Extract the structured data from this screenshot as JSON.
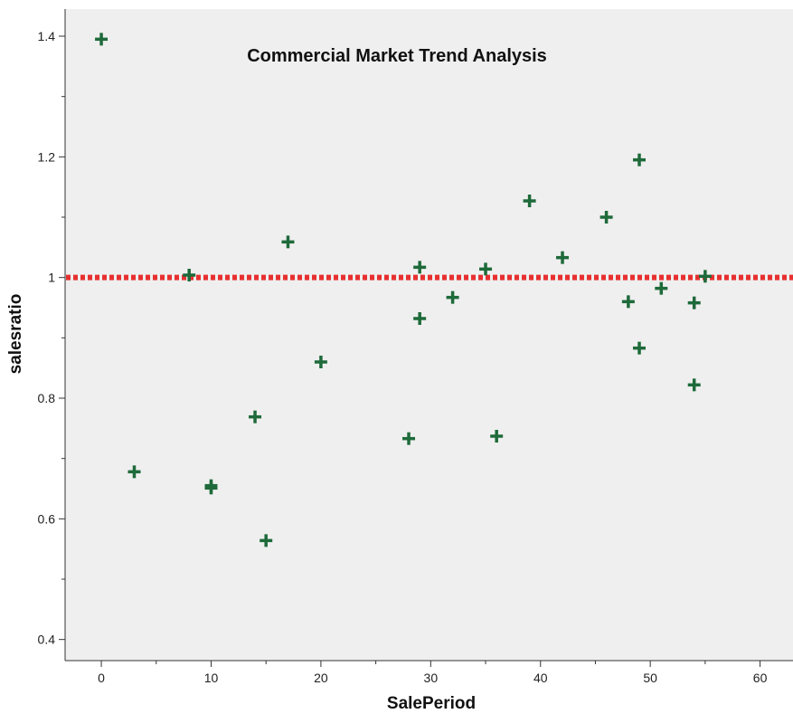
{
  "chart_data": {
    "type": "scatter",
    "title": "Commercial Market Trend Analysis",
    "xlabel": "SalePeriod",
    "ylabel": "salesratio",
    "xlim": [
      -3.3,
      63
    ],
    "ylim": [
      0.365,
      1.445
    ],
    "x_ticks": [
      0,
      10,
      20,
      30,
      40,
      50,
      60
    ],
    "x_tick_labels": [
      "0",
      "10",
      "20",
      "30",
      "40",
      "50",
      "60"
    ],
    "y_ticks": [
      0.4,
      0.6,
      0.8,
      1.0,
      1.2,
      1.4
    ],
    "y_tick_labels": [
      "0.4",
      "0.6",
      "0.8",
      "1",
      "1.2",
      "1.4"
    ],
    "reference_line": {
      "y": 1.0,
      "style": "dotted",
      "color": "#e83030"
    },
    "grid": false,
    "marker": "plus",
    "marker_color": "#1e6a3a",
    "plot_background": "#efefef",
    "points": [
      {
        "x": 0,
        "y": 1.395
      },
      {
        "x": 3,
        "y": 0.678
      },
      {
        "x": 8,
        "y": 1.004
      },
      {
        "x": 10,
        "y": 0.655
      },
      {
        "x": 10,
        "y": 0.651
      },
      {
        "x": 14,
        "y": 0.769
      },
      {
        "x": 15,
        "y": 0.564
      },
      {
        "x": 17,
        "y": 1.059
      },
      {
        "x": 20,
        "y": 0.86
      },
      {
        "x": 28,
        "y": 0.733
      },
      {
        "x": 29,
        "y": 1.017
      },
      {
        "x": 29,
        "y": 0.932
      },
      {
        "x": 32,
        "y": 0.967
      },
      {
        "x": 35,
        "y": 1.014
      },
      {
        "x": 36,
        "y": 0.737
      },
      {
        "x": 39,
        "y": 1.127
      },
      {
        "x": 42,
        "y": 1.033
      },
      {
        "x": 46,
        "y": 1.1
      },
      {
        "x": 48,
        "y": 0.96
      },
      {
        "x": 49,
        "y": 1.195
      },
      {
        "x": 49,
        "y": 0.883
      },
      {
        "x": 51,
        "y": 0.982
      },
      {
        "x": 54,
        "y": 0.958
      },
      {
        "x": 54,
        "y": 0.822
      },
      {
        "x": 55,
        "y": 1.002
      }
    ]
  }
}
